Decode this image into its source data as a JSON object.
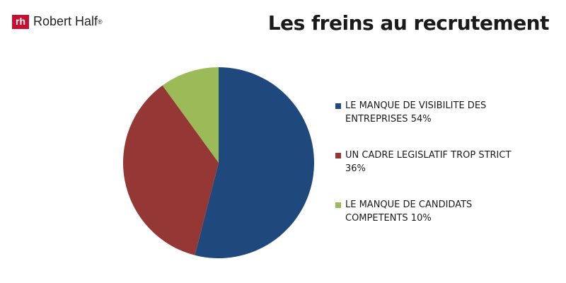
{
  "logo": {
    "mark": "rh",
    "text": "Robert Half",
    "registered": "®"
  },
  "chart_data": {
    "type": "pie",
    "title": "Les freins au recrutement",
    "categories": [
      "LE MANQUE DE VISIBILITE DES ENTREPRISES",
      "UN CADRE LEGISLATIF TROP STRICT",
      "LE MANQUE DE CANDIDATS COMPETENTS"
    ],
    "values": [
      54,
      36,
      10
    ],
    "value_labels": [
      "54%",
      "36%",
      "10%"
    ],
    "colors": [
      "#1f497d",
      "#953735",
      "#9bbb59"
    ],
    "legend": "right"
  }
}
